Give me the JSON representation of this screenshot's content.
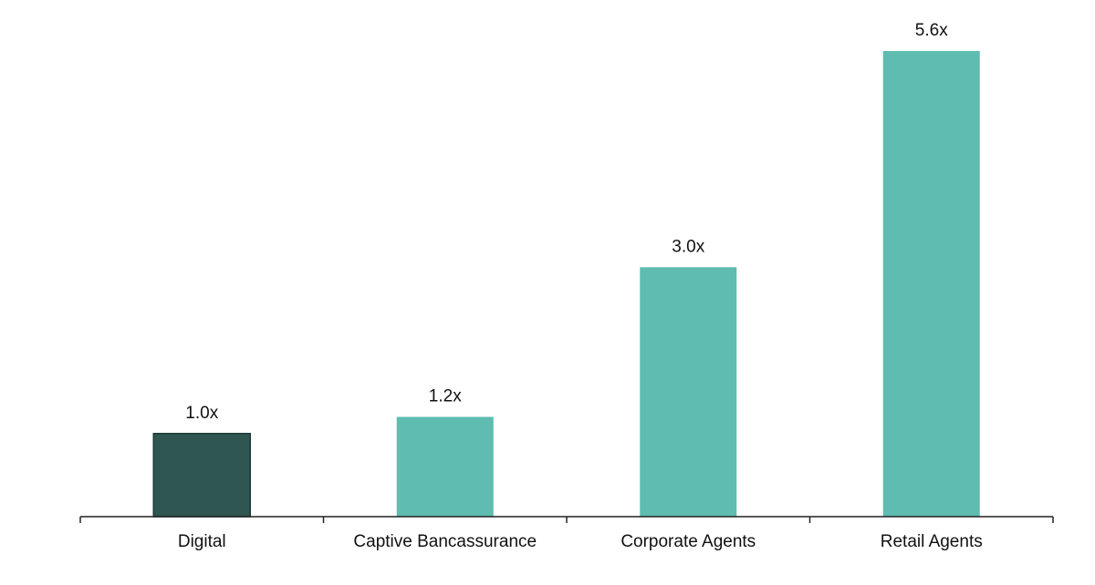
{
  "chart_data": {
    "type": "bar",
    "title": "",
    "xlabel": "",
    "ylabel": "",
    "categories": [
      "Digital",
      "Captive Bancassurance",
      "Corporate Agents",
      "Retail Agents"
    ],
    "values": [
      1.0,
      1.2,
      3.0,
      5.6
    ],
    "data_labels": [
      "1.0x",
      "1.2x",
      "3.0x",
      "5.6x"
    ],
    "bar_colors": [
      "#2f5651",
      "#5fbcb0",
      "#5fbcb0",
      "#5fbcb0"
    ],
    "bar_outline": "#1e3a37",
    "ylim": [
      0,
      5.6
    ],
    "y_axis_visible": false,
    "grid": false,
    "legend": "none"
  }
}
